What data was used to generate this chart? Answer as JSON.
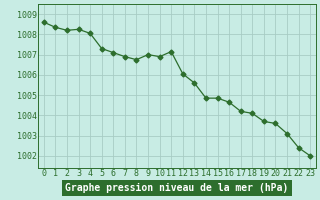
{
  "x": [
    0,
    1,
    2,
    3,
    4,
    5,
    6,
    7,
    8,
    9,
    10,
    11,
    12,
    13,
    14,
    15,
    16,
    17,
    18,
    19,
    20,
    21,
    22,
    23
  ],
  "y": [
    1008.6,
    1008.35,
    1008.2,
    1008.25,
    1008.05,
    1007.3,
    1007.1,
    1006.9,
    1006.75,
    1007.0,
    1006.9,
    1007.15,
    1006.05,
    1005.6,
    1004.85,
    1004.85,
    1004.65,
    1004.2,
    1004.1,
    1003.7,
    1003.6,
    1003.1,
    1002.4,
    1002.0
  ],
  "line_color": "#2d6e2d",
  "marker": "D",
  "marker_size": 2.5,
  "line_width": 0.9,
  "bg_color": "#c8ece4",
  "grid_color_major": "#b0d0c8",
  "grid_color_minor": "#d4eae4",
  "xlabel": "Graphe pression niveau de la mer (hPa)",
  "xlabel_bg": "#2d6e2d",
  "xlabel_color": "#ffffff",
  "xlabel_fontsize": 7,
  "ylabel_ticks": [
    1002,
    1003,
    1004,
    1005,
    1006,
    1007,
    1008,
    1009
  ],
  "ylim": [
    1001.4,
    1009.5
  ],
  "xlim": [
    -0.5,
    23.5
  ],
  "tick_fontsize": 6,
  "xtick_labels": [
    "0",
    "1",
    "2",
    "3",
    "4",
    "5",
    "6",
    "7",
    "8",
    "9",
    "10",
    "11",
    "12",
    "13",
    "14",
    "15",
    "16",
    "17",
    "18",
    "19",
    "20",
    "21",
    "22",
    "23"
  ]
}
